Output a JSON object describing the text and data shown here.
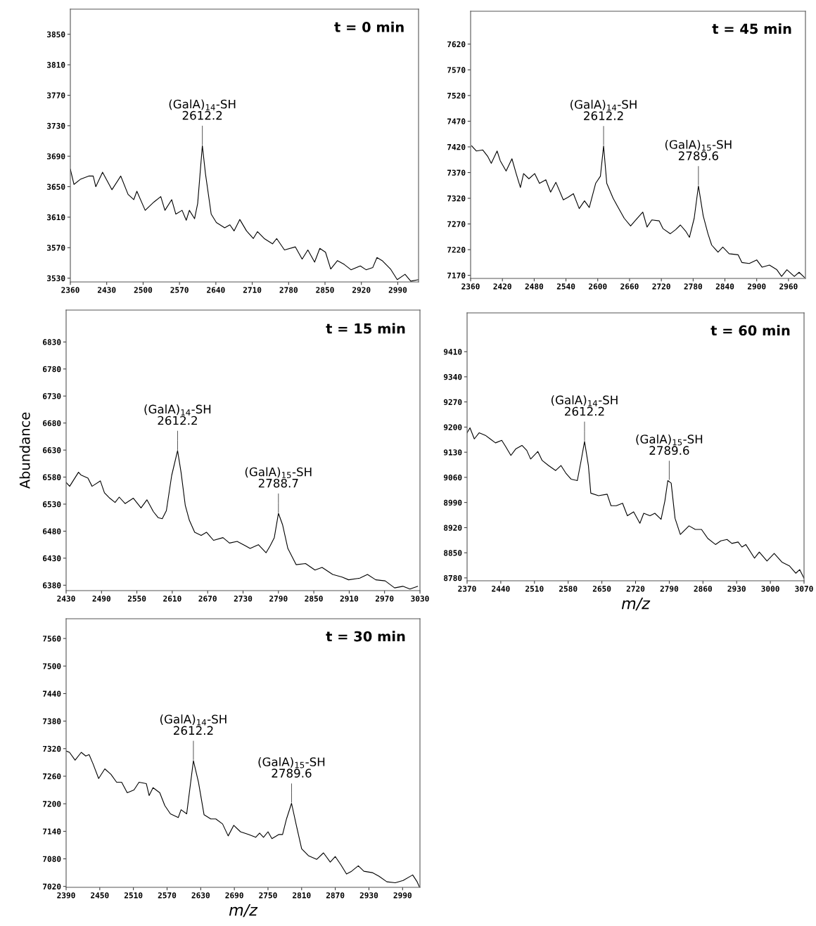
{
  "chart_data": [
    {
      "type": "line",
      "title": "t = 0 min",
      "color": "#000000",
      "xlim": [
        2360,
        3030
      ],
      "ylim": [
        3525,
        3883
      ],
      "xticks": [
        2360,
        2430,
        2500,
        2570,
        2640,
        2710,
        2780,
        2850,
        2920,
        2990
      ],
      "yticks": [
        3530,
        3570,
        3610,
        3650,
        3690,
        3730,
        3770,
        3810,
        3850
      ],
      "x": [
        2360,
        2367,
        2380,
        2396,
        2404,
        2409,
        2422,
        2440,
        2457,
        2471,
        2482,
        2488,
        2504,
        2521,
        2534,
        2542,
        2555,
        2563,
        2575,
        2583,
        2589,
        2599,
        2605,
        2614,
        2620,
        2631,
        2641,
        2657,
        2667,
        2675,
        2686,
        2699,
        2712,
        2720,
        2733,
        2749,
        2757,
        2772,
        2793,
        2806,
        2817,
        2830,
        2840,
        2851,
        2861,
        2874,
        2887,
        2900,
        2918,
        2929,
        2942,
        2950,
        2960,
        2976,
        2989,
        3004,
        3015,
        3030
      ],
      "values": [
        3673,
        3653,
        3660,
        3664,
        3664,
        3650,
        3669,
        3646,
        3664,
        3640,
        3633,
        3644,
        3619,
        3630,
        3637,
        3619,
        3633,
        3614,
        3619,
        3606,
        3619,
        3608,
        3628,
        3704,
        3667,
        3614,
        3603,
        3596,
        3600,
        3592,
        3607,
        3592,
        3582,
        3591,
        3582,
        3575,
        3582,
        3567,
        3571,
        3555,
        3567,
        3551,
        3569,
        3564,
        3542,
        3553,
        3548,
        3541,
        3546,
        3541,
        3544,
        3557,
        3553,
        3542,
        3528,
        3535,
        3526,
        3528
      ],
      "annotations": [
        {
          "text": "(GalA)$_{14}$-SH\n2612.2",
          "x": 2614,
          "y": 3704
        }
      ]
    },
    {
      "type": "line",
      "title": "t = 45 min",
      "color": "#000000",
      "xlim": [
        2360,
        2992
      ],
      "ylim": [
        7164,
        7684
      ],
      "xticks": [
        2360,
        2420,
        2480,
        2540,
        2600,
        2660,
        2720,
        2780,
        2840,
        2900,
        2960
      ],
      "yticks": [
        7170,
        7220,
        7270,
        7320,
        7370,
        7420,
        7470,
        7520,
        7570,
        7620
      ],
      "x": [
        2362,
        2371,
        2383,
        2392,
        2399,
        2410,
        2416,
        2427,
        2438,
        2446,
        2454,
        2460,
        2470,
        2481,
        2490,
        2502,
        2511,
        2521,
        2535,
        2544,
        2554,
        2565,
        2575,
        2584,
        2596,
        2605,
        2611,
        2617,
        2629,
        2637,
        2650,
        2662,
        2672,
        2685,
        2693,
        2702,
        2716,
        2723,
        2737,
        2747,
        2756,
        2766,
        2773,
        2782,
        2790,
        2799,
        2808,
        2815,
        2827,
        2836,
        2848,
        2865,
        2872,
        2886,
        2900,
        2910,
        2924,
        2938,
        2947,
        2957,
        2971,
        2980,
        2990
      ],
      "values": [
        7422,
        7412,
        7414,
        7402,
        7388,
        7412,
        7393,
        7373,
        7397,
        7368,
        7341,
        7368,
        7358,
        7368,
        7349,
        7356,
        7332,
        7351,
        7317,
        7322,
        7329,
        7300,
        7315,
        7302,
        7349,
        7363,
        7422,
        7349,
        7320,
        7305,
        7281,
        7266,
        7278,
        7293,
        7264,
        7278,
        7276,
        7261,
        7251,
        7259,
        7268,
        7256,
        7244,
        7281,
        7344,
        7286,
        7251,
        7229,
        7215,
        7225,
        7212,
        7210,
        7195,
        7193,
        7200,
        7186,
        7190,
        7181,
        7168,
        7181,
        7168,
        7176,
        7166
      ],
      "annotations": [
        {
          "text": "(GalA)$_{14}$-SH\n2612.2",
          "x": 2611,
          "y": 7422
        },
        {
          "text": "(GalA)$_{15}$-SH\n2789.6",
          "x": 2790,
          "y": 7344
        }
      ]
    },
    {
      "type": "line",
      "title": "t = 15 min",
      "ylabel": "Abundance",
      "color": "#000000",
      "xlim": [
        2430,
        3030
      ],
      "ylim": [
        6370,
        6889
      ],
      "xticks": [
        2430,
        2490,
        2550,
        2610,
        2670,
        2730,
        2790,
        2850,
        2910,
        2970,
        3030
      ],
      "yticks": [
        6380,
        6430,
        6480,
        6530,
        6580,
        6630,
        6680,
        6730,
        6780,
        6830
      ],
      "x": [
        2430,
        2436,
        2451,
        2455,
        2467,
        2474,
        2488,
        2495,
        2504,
        2513,
        2520,
        2530,
        2544,
        2557,
        2567,
        2578,
        2586,
        2593,
        2600,
        2609,
        2619,
        2625,
        2632,
        2639,
        2648,
        2659,
        2668,
        2680,
        2696,
        2707,
        2720,
        2734,
        2742,
        2756,
        2769,
        2776,
        2783,
        2790,
        2797,
        2806,
        2820,
        2836,
        2852,
        2864,
        2882,
        2898,
        2909,
        2928,
        2941,
        2955,
        2971,
        2987,
        3001,
        3013,
        3026
      ],
      "values": [
        6570,
        6563,
        6589,
        6584,
        6578,
        6563,
        6573,
        6551,
        6541,
        6533,
        6543,
        6531,
        6541,
        6523,
        6538,
        6516,
        6505,
        6503,
        6518,
        6583,
        6629,
        6588,
        6528,
        6500,
        6478,
        6472,
        6478,
        6463,
        6468,
        6458,
        6461,
        6453,
        6448,
        6455,
        6440,
        6453,
        6468,
        6513,
        6492,
        6448,
        6418,
        6420,
        6408,
        6413,
        6400,
        6395,
        6390,
        6393,
        6400,
        6390,
        6388,
        6375,
        6378,
        6373,
        6378
      ],
      "annotations": [
        {
          "text": "(GalA)$_{14}$-SH\n2612.2",
          "x": 2619,
          "y": 6629
        },
        {
          "text": "(GalA)$_{15}$-SH\n2788.7",
          "x": 2790,
          "y": 6513
        }
      ]
    },
    {
      "type": "line",
      "title": "t = 60 min",
      "xlabel": "m/z",
      "color": "#000000",
      "xlim": [
        2370,
        3070
      ],
      "ylim": [
        8772,
        9518
      ],
      "xticks": [
        2370,
        2440,
        2510,
        2580,
        2650,
        2720,
        2790,
        2860,
        2930,
        3000,
        3070
      ],
      "yticks": [
        8780,
        8850,
        8920,
        8990,
        9060,
        9130,
        9200,
        9270,
        9340,
        9410
      ],
      "x": [
        2370,
        2376,
        2385,
        2395,
        2408,
        2418,
        2429,
        2442,
        2450,
        2461,
        2471,
        2484,
        2494,
        2502,
        2517,
        2526,
        2539,
        2554,
        2565,
        2575,
        2586,
        2599,
        2606,
        2614,
        2622,
        2627,
        2643,
        2661,
        2669,
        2680,
        2693,
        2703,
        2716,
        2729,
        2737,
        2750,
        2760,
        2773,
        2781,
        2787,
        2794,
        2802,
        2813,
        2831,
        2844,
        2857,
        2870,
        2886,
        2897,
        2910,
        2920,
        2933,
        2941,
        2949,
        2967,
        2977,
        2993,
        3008,
        3024,
        3040,
        3053,
        3061,
        3070
      ],
      "values": [
        9184,
        9198,
        9167,
        9184,
        9177,
        9167,
        9156,
        9163,
        9146,
        9121,
        9139,
        9149,
        9135,
        9111,
        9132,
        9107,
        9093,
        9079,
        9093,
        9072,
        9055,
        9051,
        9100,
        9160,
        9093,
        9016,
        9009,
        9013,
        8981,
        8981,
        8988,
        8953,
        8964,
        8932,
        8960,
        8953,
        8960,
        8943,
        8995,
        9051,
        9044,
        8946,
        8901,
        8925,
        8915,
        8915,
        8890,
        8873,
        8883,
        8887,
        8876,
        8880,
        8866,
        8873,
        8835,
        8852,
        8827,
        8848,
        8824,
        8813,
        8793,
        8803,
        8779
      ],
      "annotations": [
        {
          "text": "(GalA)$_{14}$-SH\n2612.2",
          "x": 2614,
          "y": 9160
        },
        {
          "text": "(GalA)$_{15}$-SH\n2789.6",
          "x": 2790,
          "y": 9051
        }
      ]
    },
    {
      "type": "line",
      "title": "t = 30 min",
      "xlabel": "m/z",
      "color": "#000000",
      "xlim": [
        2390,
        3021
      ],
      "ylim": [
        7018,
        7603
      ],
      "xticks": [
        2390,
        2450,
        2510,
        2570,
        2630,
        2690,
        2750,
        2810,
        2870,
        2930,
        2990
      ],
      "yticks": [
        7020,
        7080,
        7140,
        7200,
        7260,
        7320,
        7380,
        7440,
        7500,
        7560
      ],
      "x": [
        2390,
        2396,
        2406,
        2417,
        2425,
        2431,
        2438,
        2448,
        2459,
        2470,
        2480,
        2489,
        2499,
        2511,
        2520,
        2533,
        2538,
        2545,
        2557,
        2566,
        2576,
        2590,
        2595,
        2605,
        2617,
        2626,
        2636,
        2648,
        2657,
        2669,
        2679,
        2689,
        2701,
        2716,
        2728,
        2735,
        2742,
        2750,
        2757,
        2769,
        2776,
        2783,
        2792,
        2800,
        2810,
        2822,
        2837,
        2849,
        2861,
        2870,
        2880,
        2890,
        2899,
        2911,
        2921,
        2936,
        2948,
        2962,
        2977,
        2991,
        3008,
        3016,
        3020
      ],
      "values": [
        7315,
        7312,
        7295,
        7312,
        7304,
        7307,
        7287,
        7255,
        7276,
        7264,
        7247,
        7247,
        7224,
        7230,
        7247,
        7244,
        7218,
        7235,
        7224,
        7196,
        7178,
        7170,
        7187,
        7178,
        7294,
        7247,
        7176,
        7167,
        7167,
        7156,
        7130,
        7153,
        7139,
        7133,
        7127,
        7136,
        7127,
        7139,
        7124,
        7133,
        7133,
        7167,
        7201,
        7156,
        7102,
        7087,
        7079,
        7093,
        7073,
        7085,
        7067,
        7047,
        7053,
        7065,
        7053,
        7050,
        7042,
        7030,
        7028,
        7033,
        7045,
        7030,
        7019
      ],
      "annotations": [
        {
          "text": "(GalA)$_{14}$-SH\n2612.2",
          "x": 2617,
          "y": 7294
        },
        {
          "text": "(GalA)$_{15}$-SH\n2789.6",
          "x": 2792,
          "y": 7201
        }
      ]
    }
  ]
}
